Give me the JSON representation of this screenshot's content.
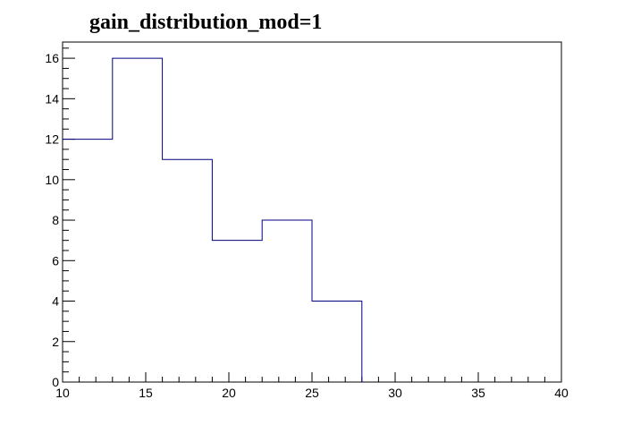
{
  "chart_data": {
    "type": "histogram",
    "title": "gain_distribution_mod=1",
    "xlabel": "",
    "ylabel": "",
    "xlim": [
      10,
      40
    ],
    "ylim": [
      0,
      16.8
    ],
    "bin_edges": [
      10,
      13,
      16,
      19,
      22,
      25,
      28,
      31,
      34,
      37,
      40
    ],
    "values": [
      12,
      16,
      11,
      7,
      8,
      4,
      0,
      0,
      0,
      0
    ],
    "x_ticks": [
      10,
      15,
      20,
      25,
      30,
      35,
      40
    ],
    "y_ticks": [
      0,
      2,
      4,
      6,
      8,
      10,
      12,
      14,
      16
    ],
    "line_color": "#000080",
    "frame_color": "#000000",
    "grid": false,
    "legend": "none"
  }
}
